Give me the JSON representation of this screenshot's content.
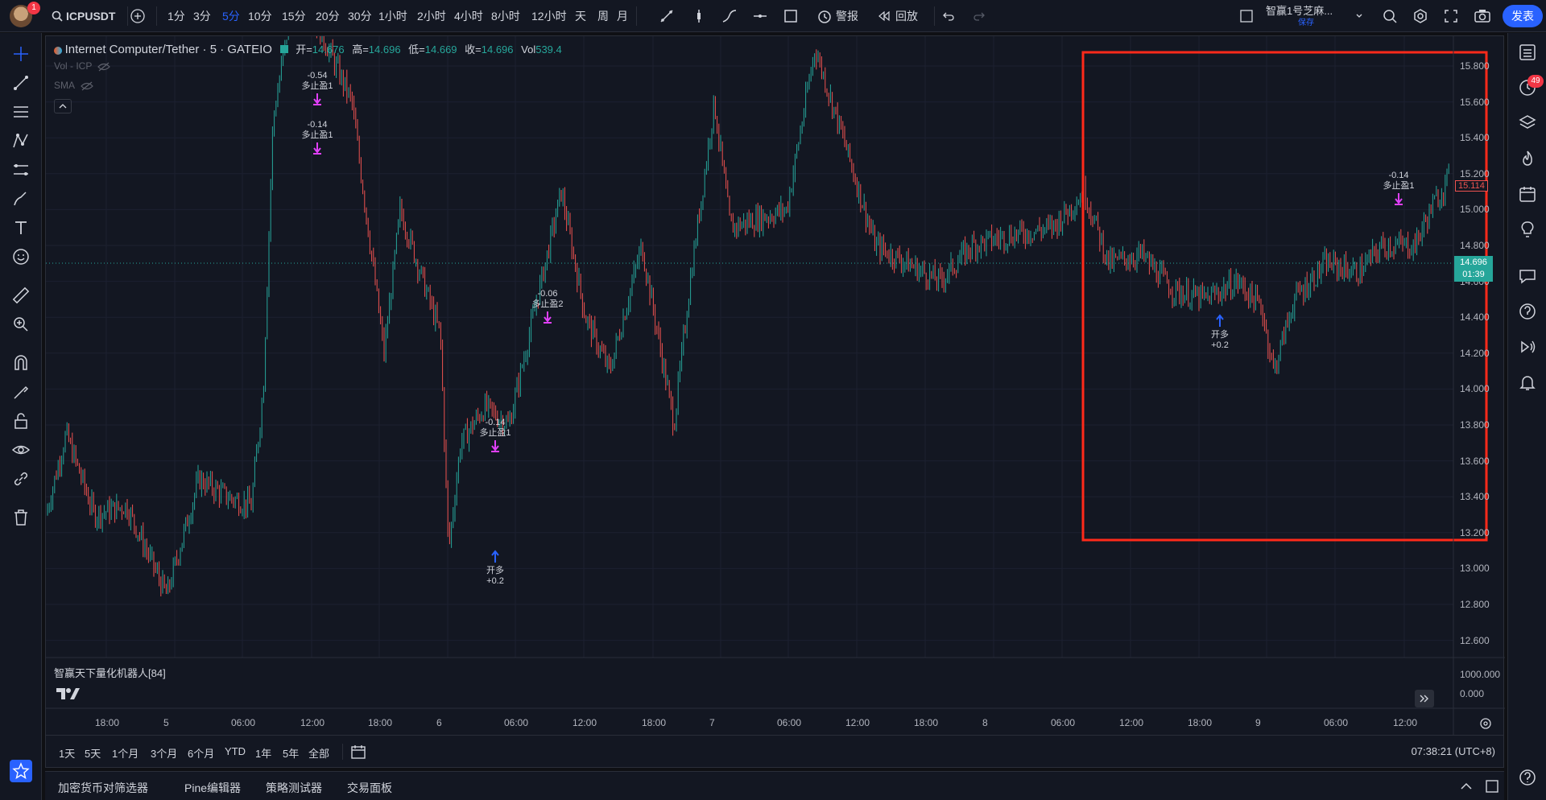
{
  "header": {
    "symbol": "ICPUSDT",
    "avatar_badge": "1",
    "intervals": [
      "1分",
      "3分",
      "5分",
      "10分",
      "15分",
      "20分",
      "30分",
      "1小时",
      "2小时",
      "4小时",
      "8小时",
      "12小时",
      "天",
      "周",
      "月"
    ],
    "active_interval": "5分",
    "alert_label": "警报",
    "replay_label": "回放",
    "strategy_name": "智赢1号芝麻...",
    "save_label": "保存",
    "publish_label": "发表"
  },
  "legend": {
    "title": "Internet Computer/Tether · 5 · GATEIO",
    "open_label": "开=",
    "open_value": "14.676",
    "high_label": "高=",
    "high_value": "14.696",
    "low_label": "低=",
    "low_value": "14.669",
    "close_label": "收=",
    "close_value": "14.696",
    "vol_label": "Vol",
    "vol_value": "539.4",
    "indicator1": "Vol - ICP",
    "indicator2": "SMA"
  },
  "price_axis": {
    "ticks": [
      "15.800",
      "15.600",
      "15.400",
      "15.200",
      "15.000",
      "14.800",
      "14.600",
      "14.400",
      "14.200",
      "14.000",
      "13.800",
      "13.600",
      "13.400",
      "13.200",
      "13.000",
      "12.800",
      "12.600"
    ],
    "current_price": "14.696",
    "countdown": "01:39",
    "red_line_value": "15.114",
    "pane_ticks": [
      "1000.000",
      "0.000"
    ]
  },
  "time_axis": {
    "labels": [
      "18:00",
      "5",
      "06:00",
      "12:00",
      "18:00",
      "6",
      "06:00",
      "12:00",
      "18:00",
      "7",
      "06:00",
      "12:00",
      "18:00",
      "8",
      "06:00",
      "12:00",
      "18:00",
      "9",
      "06:00",
      "12:00"
    ]
  },
  "indicator_pane": {
    "name": "智赢天下量化机器人[84]"
  },
  "markers": [
    {
      "value": "-0.54",
      "label": "多止盈1"
    },
    {
      "value": "-0.14",
      "label": "多止盈1"
    },
    {
      "value": "-0.06",
      "label": "多止盈2"
    },
    {
      "value": "-0.14",
      "label": "多止盈1"
    },
    {
      "label": "开多",
      "value": "+0.2"
    },
    {
      "label": "开多",
      "value": "+0.2"
    },
    {
      "value": "-0.14",
      "label": "多止盈1"
    }
  ],
  "range_buttons": [
    "1天",
    "5天",
    "1个月",
    "3个月",
    "6个月",
    "YTD",
    "1年",
    "5年",
    "全部"
  ],
  "clock": "07:38:21 (UTC+8)",
  "bottom_tabs": [
    "加密货币对筛选器",
    "Pine编辑器",
    "策略测试器",
    "交易面板"
  ],
  "notification_count": "49",
  "colors": {
    "up": "#26a69a",
    "down": "#ef5350",
    "accent": "#2962ff",
    "highlight_box": "#ff2a1a",
    "marker": "#e040fb"
  }
}
